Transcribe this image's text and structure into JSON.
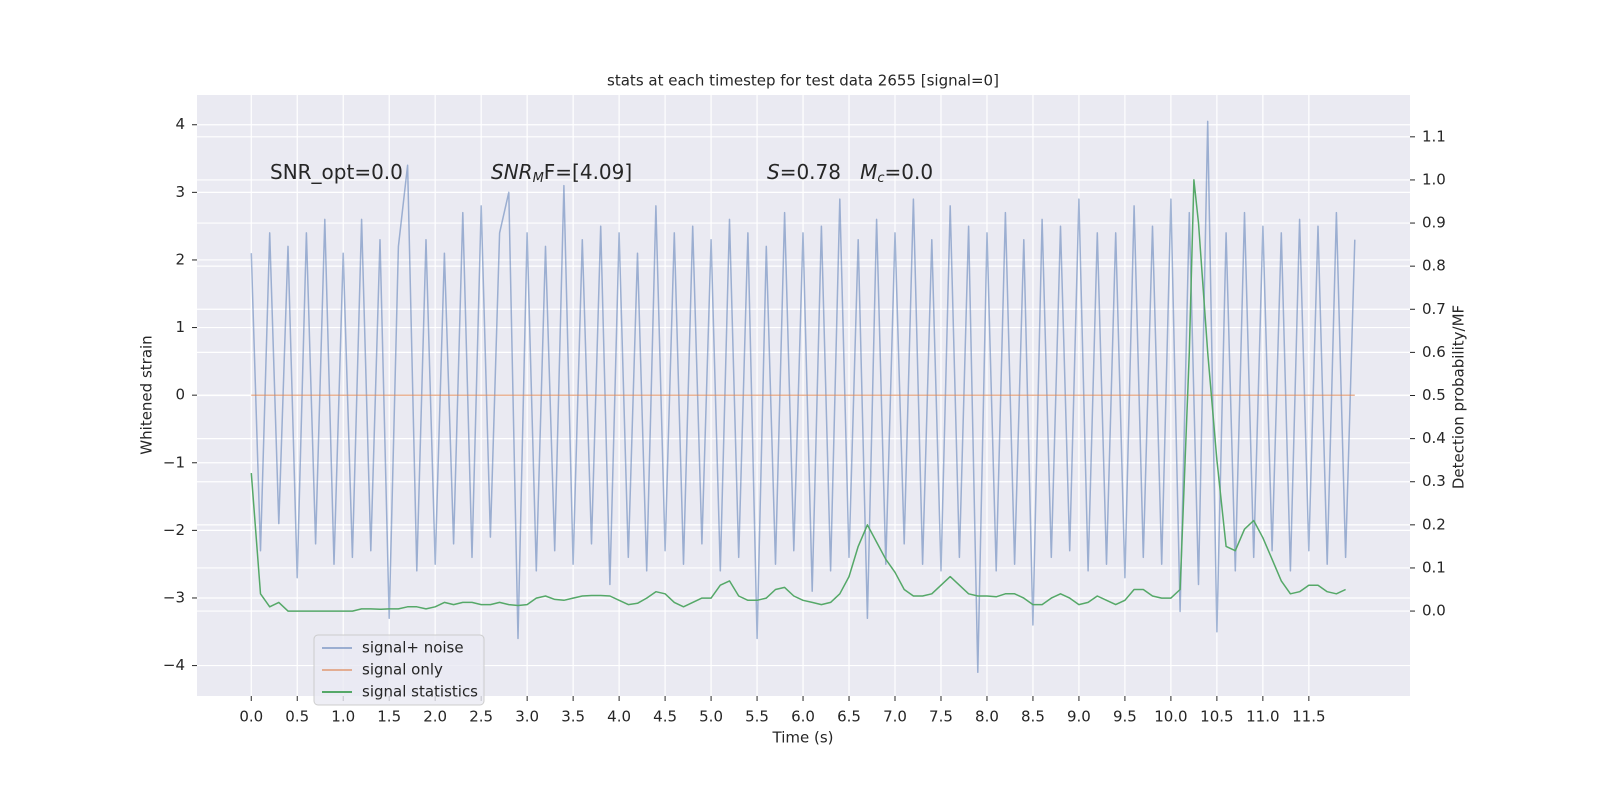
{
  "chart_data": {
    "type": "line",
    "title": "stats at each timestep for test data 2655 [signal=0]",
    "xlabel": "Time (s)",
    "ylabel": "Whitened strain",
    "y2label": "Detection probability/MF",
    "xlim": [
      -0.59,
      12.6
    ],
    "ylim": [
      -4.45,
      4.44
    ],
    "y2lim": [
      -0.197,
      1.197
    ],
    "grid": true,
    "legend": "lower left",
    "xticks": [
      {
        "value": 0,
        "label": "0.0"
      },
      {
        "value": 0.5,
        "label": "0.5"
      },
      {
        "value": 1,
        "label": "1.0"
      },
      {
        "value": 1.5,
        "label": "1.5"
      },
      {
        "value": 2,
        "label": "2.0"
      },
      {
        "value": 2.5,
        "label": "2.5"
      },
      {
        "value": 3,
        "label": "3.0"
      },
      {
        "value": 3.5,
        "label": "3.5"
      },
      {
        "value": 4,
        "label": "4.0"
      },
      {
        "value": 4.5,
        "label": "4.5"
      },
      {
        "value": 5,
        "label": "5.0"
      },
      {
        "value": 5.5,
        "label": "5.5"
      },
      {
        "value": 6,
        "label": "6.0"
      },
      {
        "value": 6.5,
        "label": "6.5"
      },
      {
        "value": 7,
        "label": "7.0"
      },
      {
        "value": 7.5,
        "label": "7.5"
      },
      {
        "value": 8,
        "label": "8.0"
      },
      {
        "value": 8.5,
        "label": "8.5"
      },
      {
        "value": 9,
        "label": "9.0"
      },
      {
        "value": 9.5,
        "label": "9.5"
      },
      {
        "value": 10,
        "label": "10.0"
      },
      {
        "value": 10.5,
        "label": "10.5"
      },
      {
        "value": 11,
        "label": "11.0"
      },
      {
        "value": 11.5,
        "label": "11.5"
      }
    ],
    "yticks": [
      {
        "value": -4,
        "label": "−4"
      },
      {
        "value": -3,
        "label": "−3"
      },
      {
        "value": -2,
        "label": "−2"
      },
      {
        "value": -1,
        "label": "−1"
      },
      0,
      1,
      2,
      3,
      4
    ],
    "y2ticks": [
      {
        "value": 0,
        "label": "0.0"
      },
      {
        "value": 0.1,
        "label": "0.1"
      },
      {
        "value": 0.2,
        "label": "0.2"
      },
      {
        "value": 0.3,
        "label": "0.3"
      },
      {
        "value": 0.4,
        "label": "0.4"
      },
      {
        "value": 0.5,
        "label": "0.5"
      },
      {
        "value": 0.6,
        "label": "0.6"
      },
      {
        "value": 0.7,
        "label": "0.7"
      },
      {
        "value": 0.8,
        "label": "0.8"
      },
      {
        "value": 0.9,
        "label": "0.9"
      },
      {
        "value": 1,
        "label": "1.0"
      },
      {
        "value": 1.1,
        "label": "1.1"
      }
    ],
    "annotations": [
      [
        {
          "text": "SNR_opt=0.0",
          "style": "normal"
        }
      ],
      [
        {
          "text": "SNR",
          "style": "italic"
        },
        {
          "text": "M",
          "style": "sub"
        },
        {
          "text": "F=[4.09]",
          "style": "normal"
        }
      ],
      [
        {
          "text": "S",
          "style": "italic"
        },
        {
          "text": "=0.78   ",
          "style": "normal"
        },
        {
          "text": "M",
          "style": "italic"
        },
        {
          "text": "c",
          "style": "sub"
        },
        {
          "text": "=0.0",
          "style": "normal"
        }
      ]
    ],
    "series": [
      {
        "name": "signal+ noise",
        "color": "#4c72b0",
        "opacity": 0.5,
        "x": [
          0,
          0.1,
          0.2,
          0.3,
          0.4,
          0.5,
          0.6,
          0.7,
          0.8,
          0.9,
          1,
          1.1,
          1.2,
          1.3,
          1.4,
          1.5,
          1.6,
          1.7,
          1.8,
          1.9,
          2,
          2.1,
          2.2,
          2.3,
          2.4,
          2.5,
          2.6,
          2.7,
          2.8,
          2.9,
          3,
          3.1,
          3.2,
          3.3,
          3.4,
          3.5,
          3.6,
          3.7,
          3.8,
          3.9,
          4,
          4.1,
          4.2,
          4.3,
          4.4,
          4.5,
          4.6,
          4.7,
          4.8,
          4.9,
          5,
          5.1,
          5.2,
          5.3,
          5.4,
          5.5,
          5.6,
          5.7,
          5.8,
          5.9,
          6,
          6.1,
          6.2,
          6.3,
          6.4,
          6.5,
          6.6,
          6.7,
          6.8,
          6.9,
          7,
          7.1,
          7.2,
          7.3,
          7.4,
          7.5,
          7.6,
          7.7,
          7.8,
          7.9,
          8,
          8.1,
          8.2,
          8.3,
          8.4,
          8.5,
          8.6,
          8.7,
          8.8,
          8.9,
          9,
          9.1,
          9.2,
          9.3,
          9.4,
          9.5,
          9.6,
          9.7,
          9.8,
          9.9,
          10,
          10.1,
          10.2,
          10.3,
          10.4,
          10.5,
          10.6,
          10.7,
          10.8,
          10.9,
          11,
          11.1,
          11.2,
          11.3,
          11.4,
          11.5,
          11.6,
          11.7,
          11.8,
          11.9,
          12
        ],
        "values": [
          2.1,
          -2.3,
          2.4,
          -1.9,
          2.2,
          -2.7,
          2.4,
          -2.2,
          2.6,
          -2.5,
          2.1,
          -2.4,
          2.6,
          -2.3,
          2.3,
          -3.3,
          2.2,
          3.4,
          -2.6,
          2.3,
          -2.5,
          2.1,
          -2.2,
          2.7,
          -2.4,
          2.8,
          -2.1,
          2.4,
          3.0,
          -3.6,
          2.4,
          -2.6,
          2.2,
          -2.3,
          3.1,
          -2.5,
          2.3,
          -2.2,
          2.5,
          -2.8,
          2.4,
          -2.4,
          2.1,
          -2.6,
          2.8,
          -2.3,
          2.4,
          -2.5,
          2.5,
          -2.2,
          2.3,
          -2.6,
          2.6,
          -2.4,
          2.4,
          -3.6,
          2.2,
          -2.5,
          2.7,
          -2.3,
          2.4,
          -2.9,
          2.5,
          -2.6,
          2.9,
          -2.4,
          2.3,
          -3.3,
          2.6,
          -2.5,
          2.4,
          -2.2,
          2.9,
          -2.5,
          2.3,
          -2.6,
          2.8,
          -2.4,
          2.5,
          -4.1,
          2.4,
          -2.6,
          2.7,
          -2.5,
          2.3,
          -3.4,
          2.6,
          -2.4,
          2.5,
          -2.3,
          2.9,
          -2.6,
          2.4,
          -2.5,
          2.4,
          -2.7,
          2.8,
          -2.4,
          2.5,
          -2.5,
          2.9,
          -3.2,
          2.7,
          -2.8,
          4.05,
          -3.5,
          2.4,
          -2.6,
          2.7,
          -2.4,
          2.5,
          -2.3,
          2.4,
          -2.6,
          2.6,
          -2.3,
          2.5,
          -2.5,
          2.7,
          -2.4,
          2.3
        ],
        "axis": "y"
      },
      {
        "name": "signal only",
        "color": "#dd8452",
        "opacity": 0.6,
        "x": [
          0,
          12
        ],
        "values": [
          0,
          0
        ],
        "axis": "y"
      },
      {
        "name": "signal statistics",
        "color": "#55a868",
        "opacity": 1,
        "x": [
          0,
          0.1,
          0.2,
          0.3,
          0.4,
          0.5,
          0.6,
          0.7,
          0.8,
          0.9,
          1,
          1.1,
          1.2,
          1.3,
          1.4,
          1.5,
          1.6,
          1.7,
          1.8,
          1.9,
          2,
          2.1,
          2.2,
          2.3,
          2.4,
          2.5,
          2.6,
          2.7,
          2.8,
          2.9,
          3,
          3.1,
          3.2,
          3.3,
          3.4,
          3.5,
          3.6,
          3.7,
          3.8,
          3.9,
          4,
          4.1,
          4.2,
          4.3,
          4.4,
          4.5,
          4.6,
          4.7,
          4.8,
          4.9,
          5,
          5.1,
          5.2,
          5.3,
          5.4,
          5.5,
          5.6,
          5.7,
          5.8,
          5.9,
          6,
          6.1,
          6.2,
          6.3,
          6.4,
          6.5,
          6.6,
          6.7,
          6.8,
          6.9,
          7,
          7.1,
          7.2,
          7.3,
          7.4,
          7.5,
          7.6,
          7.7,
          7.8,
          7.9,
          8,
          8.1,
          8.2,
          8.3,
          8.4,
          8.5,
          8.6,
          8.7,
          8.8,
          8.9,
          9,
          9.1,
          9.2,
          9.3,
          9.4,
          9.5,
          9.6,
          9.7,
          9.8,
          9.9,
          10,
          10.1,
          10.2,
          10.25,
          10.3,
          10.4,
          10.5,
          10.6,
          10.7,
          10.8,
          10.9,
          11,
          11.1,
          11.2,
          11.3,
          11.4,
          11.5,
          11.6,
          11.7,
          11.8,
          11.9
        ],
        "values": [
          0.32,
          0.04,
          0.01,
          0.02,
          0.0,
          0.0,
          0.0,
          0.0,
          0.0,
          0.0,
          0.0,
          0.0,
          0.005,
          0.005,
          0.004,
          0.005,
          0.005,
          0.01,
          0.01,
          0.005,
          0.01,
          0.02,
          0.015,
          0.02,
          0.02,
          0.015,
          0.015,
          0.02,
          0.015,
          0.013,
          0.015,
          0.03,
          0.035,
          0.027,
          0.025,
          0.03,
          0.035,
          0.036,
          0.036,
          0.035,
          0.025,
          0.015,
          0.018,
          0.03,
          0.045,
          0.04,
          0.02,
          0.01,
          0.02,
          0.03,
          0.03,
          0.06,
          0.07,
          0.035,
          0.025,
          0.025,
          0.03,
          0.05,
          0.055,
          0.035,
          0.025,
          0.02,
          0.015,
          0.02,
          0.04,
          0.08,
          0.15,
          0.2,
          0.16,
          0.12,
          0.09,
          0.05,
          0.035,
          0.035,
          0.04,
          0.06,
          0.08,
          0.06,
          0.04,
          0.035,
          0.035,
          0.033,
          0.04,
          0.04,
          0.03,
          0.015,
          0.015,
          0.03,
          0.04,
          0.03,
          0.015,
          0.02,
          0.035,
          0.025,
          0.015,
          0.025,
          0.05,
          0.05,
          0.035,
          0.03,
          0.03,
          0.05,
          0.6,
          1.0,
          0.9,
          0.6,
          0.35,
          0.15,
          0.14,
          0.19,
          0.21,
          0.17,
          0.12,
          0.07,
          0.04,
          0.045,
          0.06,
          0.06,
          0.045,
          0.04,
          0.05
        ],
        "axis": "y2"
      }
    ]
  }
}
